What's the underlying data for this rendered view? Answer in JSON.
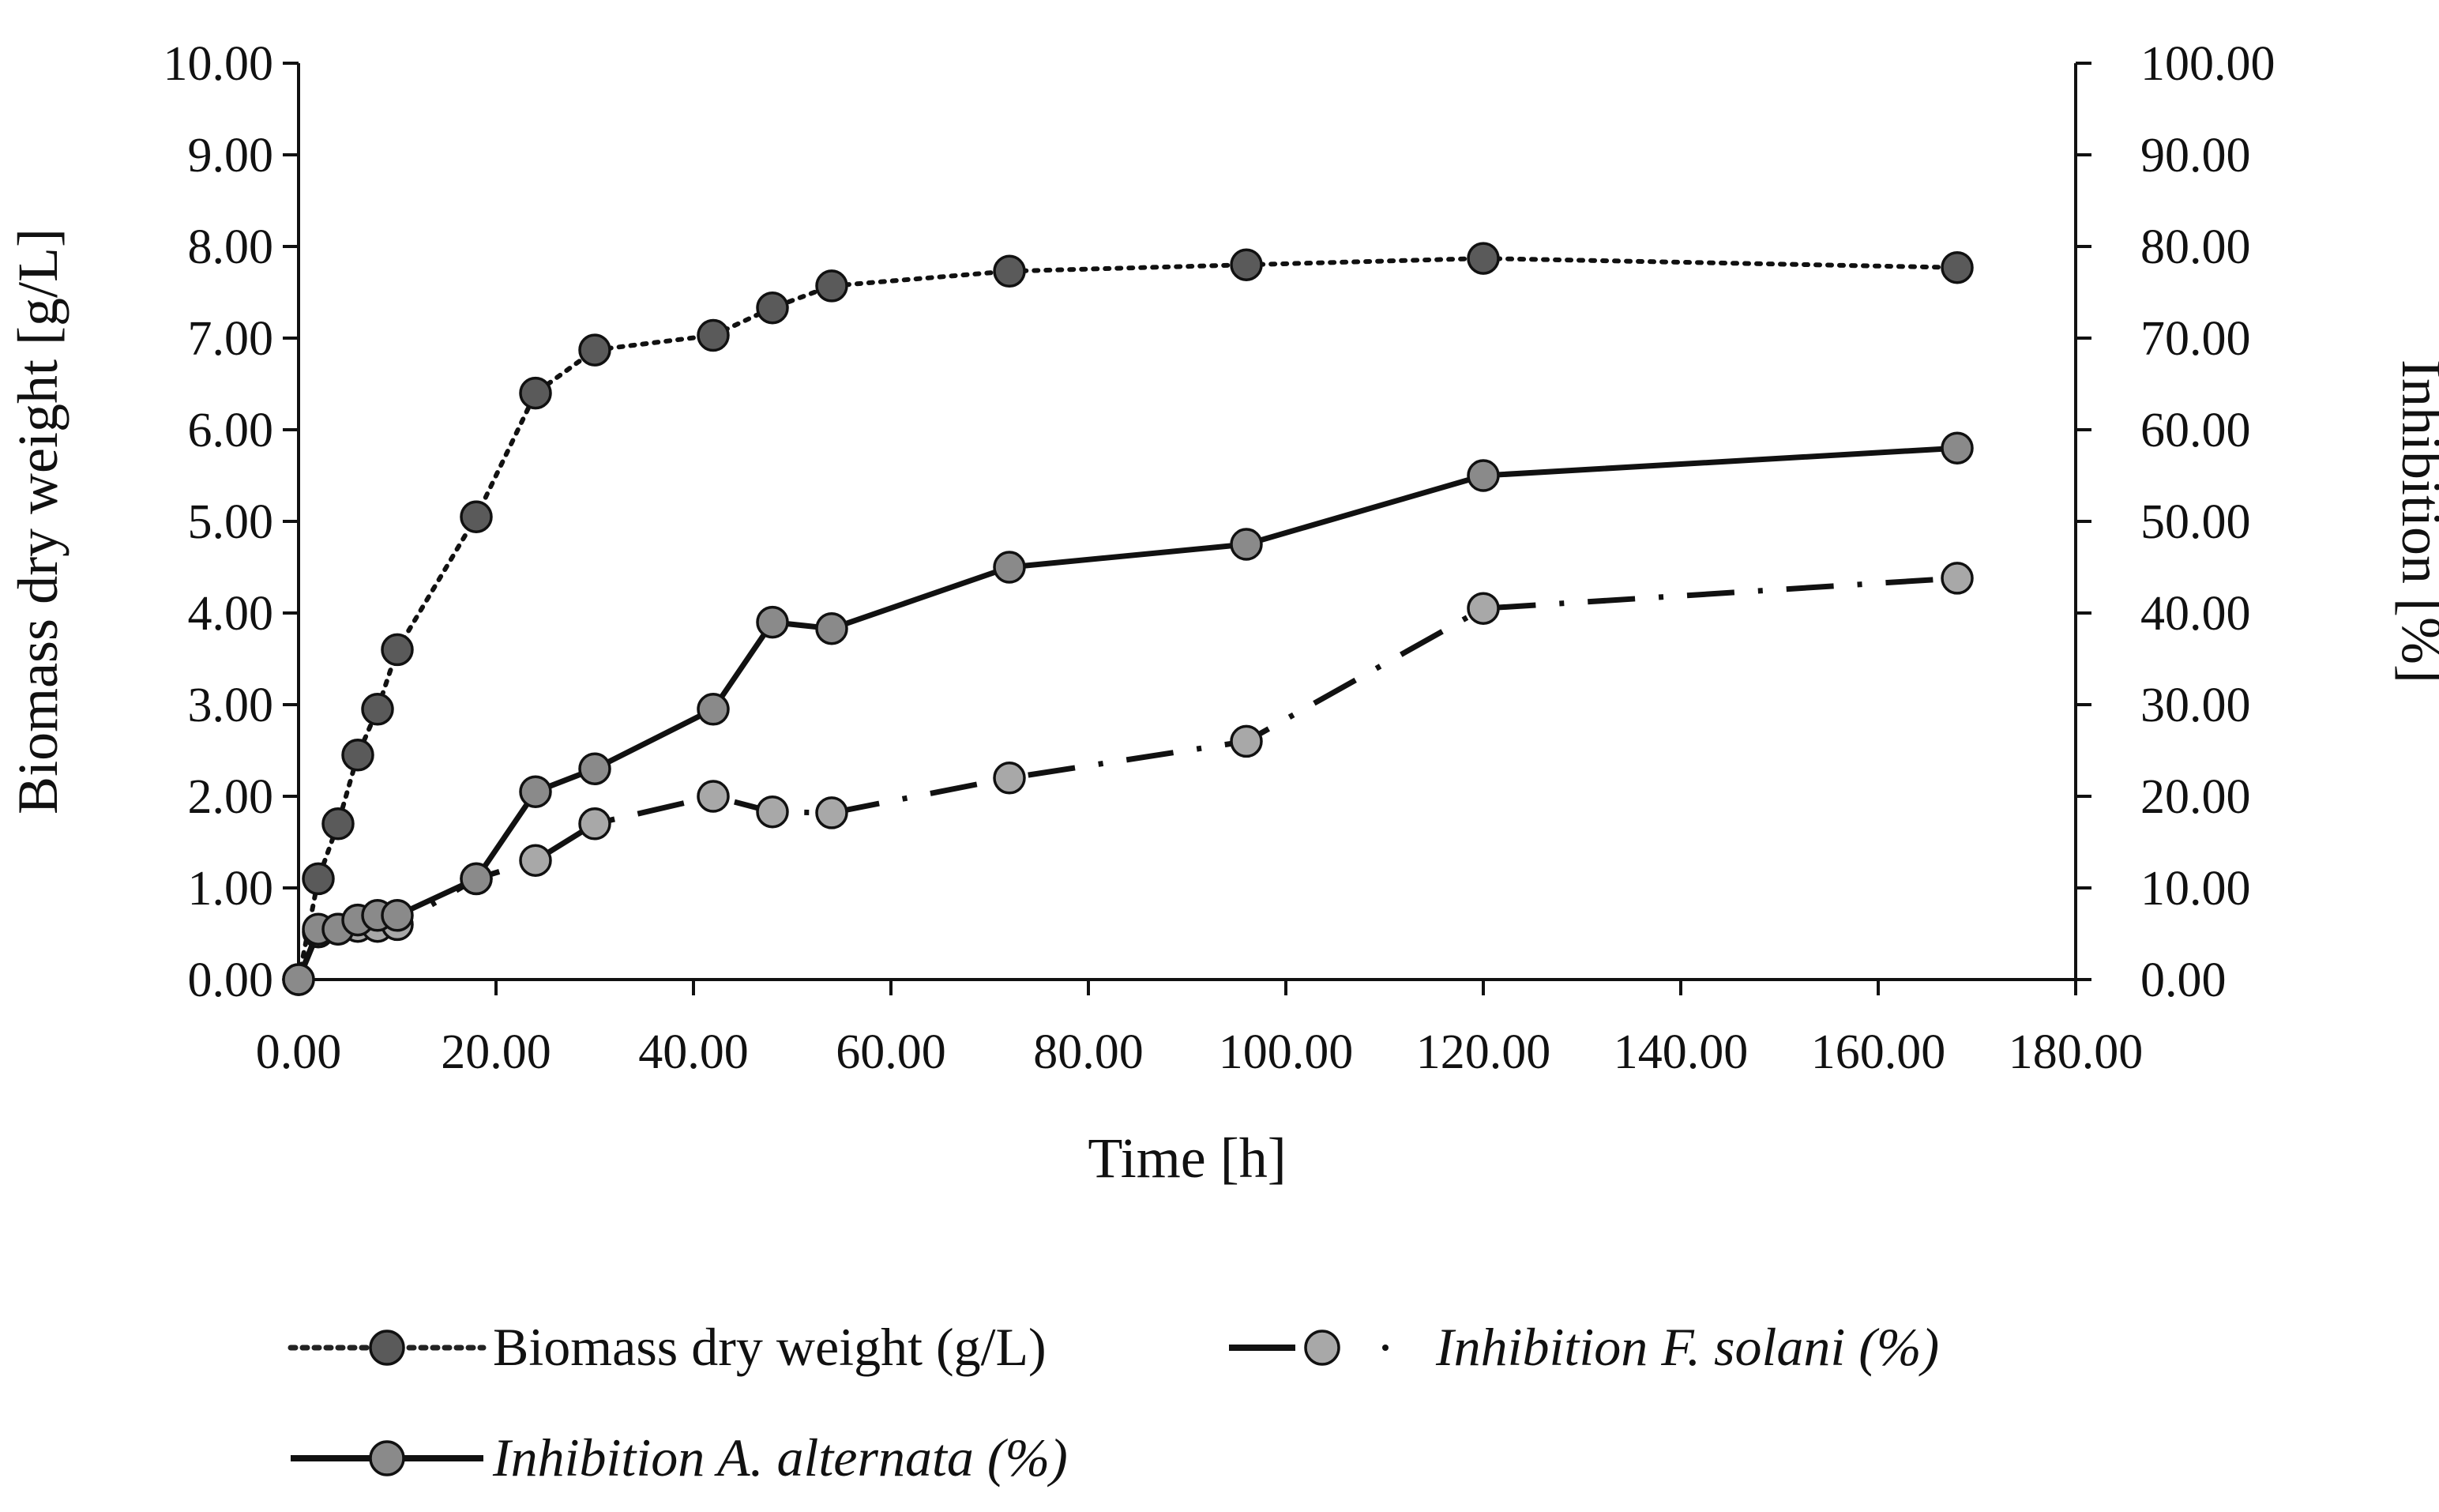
{
  "chart_data": {
    "type": "line",
    "title": "",
    "xlabel": "Time  [h]",
    "ylabel": "Biomass dry weight [g/L]",
    "y2label": "Inhibition [%]",
    "xlim": [
      0,
      180
    ],
    "ylim": [
      0,
      10
    ],
    "y2lim": [
      0,
      100
    ],
    "x_ticks": [
      "0.00",
      "20.00",
      "40.00",
      "60.00",
      "80.00",
      "100.00",
      "120.00",
      "140.00",
      "160.00",
      "180.00"
    ],
    "y_ticks": [
      "0.00",
      "1.00",
      "2.00",
      "3.00",
      "4.00",
      "5.00",
      "6.00",
      "7.00",
      "8.00",
      "9.00",
      "10.00"
    ],
    "y2_ticks": [
      "0.00",
      "10.00",
      "20.00",
      "30.00",
      "40.00",
      "50.00",
      "60.00",
      "70.00",
      "80.00",
      "90.00",
      "100.00"
    ],
    "grid": false,
    "legend_position": "bottom",
    "series": [
      {
        "name": "Biomass dry weight (g/L)",
        "axis": "left",
        "line_style": "dotted",
        "marker_color": "#5a5a5a",
        "x": [
          0,
          2,
          4,
          6,
          8,
          10,
          18,
          24,
          30,
          42,
          48,
          54,
          72,
          96,
          120,
          168
        ],
        "values": [
          0.0,
          1.1,
          1.7,
          2.45,
          2.95,
          3.6,
          5.05,
          6.4,
          6.87,
          7.03,
          7.33,
          7.57,
          7.73,
          7.8,
          7.87,
          7.77
        ]
      },
      {
        "name": "Inhibition F. solani (%)",
        "axis": "right",
        "line_style": "dash-dot",
        "marker_color": "#a8a8a8",
        "x": [
          0,
          2,
          4,
          6,
          8,
          10,
          18,
          24,
          30,
          42,
          48,
          54,
          72,
          96,
          120,
          168
        ],
        "values": [
          0.0,
          5.2,
          5.5,
          5.8,
          5.8,
          6.0,
          11.0,
          13.0,
          17.0,
          20.0,
          18.3,
          18.2,
          22.0,
          26.0,
          40.5,
          43.8
        ]
      },
      {
        "name": "Inhibition A. alternata (%)",
        "axis": "right",
        "line_style": "solid",
        "marker_color": "#8a8a8a",
        "x": [
          0,
          2,
          4,
          6,
          8,
          10,
          18,
          24,
          30,
          42,
          48,
          54,
          72,
          96,
          120,
          168
        ],
        "values": [
          0.0,
          5.5,
          5.5,
          6.5,
          7.0,
          7.0,
          11.0,
          20.5,
          23.0,
          29.5,
          39.0,
          38.3,
          45.0,
          47.5,
          55.0,
          58.0
        ]
      }
    ]
  },
  "legend": {
    "items": [
      {
        "prefix": "Biomass  dry weight (g/L)",
        "italic": ""
      },
      {
        "prefix": "",
        "italic": "Inhibition  F. solani (%)"
      },
      {
        "prefix": "",
        "italic": "Inhibition  A. alternata (%)"
      }
    ]
  }
}
